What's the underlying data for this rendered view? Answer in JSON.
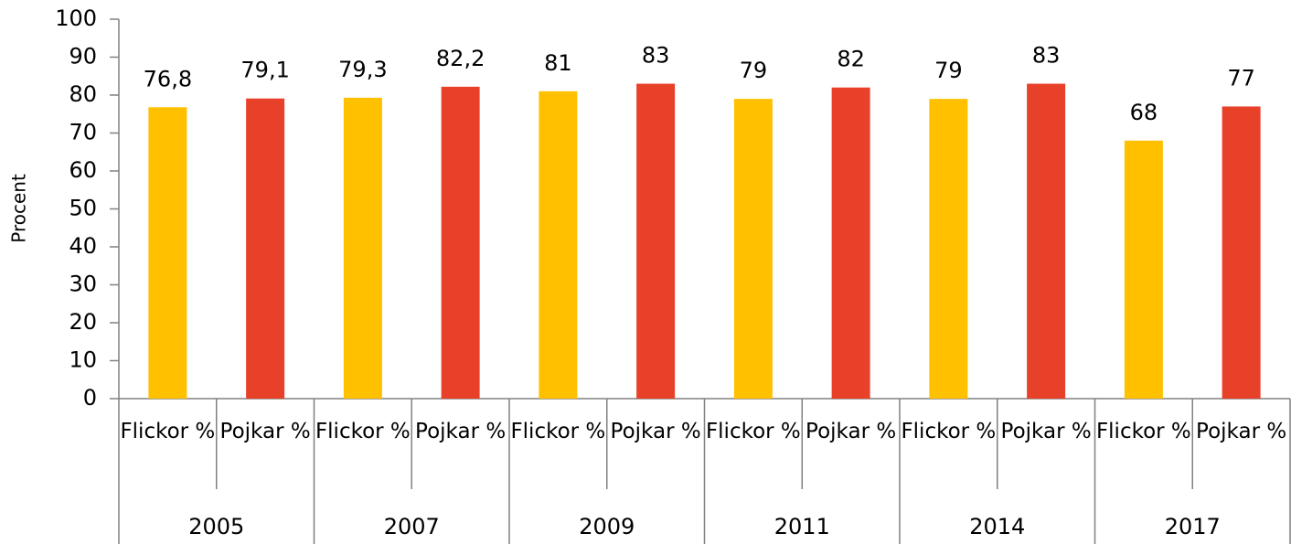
{
  "chart_data": {
    "type": "bar",
    "y_label": "Procent",
    "categories": [
      "Flickor %",
      "Pojkar %",
      "Flickor %",
      "Pojkar %",
      "Flickor %",
      "Pojkar %",
      "Flickor %",
      "Pojkar %",
      "Flickor %",
      "Pojkar %",
      "Flickor %",
      "Pojkar %"
    ],
    "groups": [
      "2005",
      "2007",
      "2009",
      "2011",
      "2014",
      "2017"
    ],
    "values": [
      76.8,
      79.1,
      79.3,
      82.2,
      81,
      83,
      79,
      82,
      79,
      83,
      68,
      77
    ],
    "value_labels": [
      "76,8",
      "79,1",
      "79,3",
      "82,2",
      "81",
      "83",
      "79",
      "82",
      "79",
      "83",
      "68",
      "77"
    ],
    "colors": [
      "#ffc000",
      "#e8412a",
      "#ffc000",
      "#e8412a",
      "#ffc000",
      "#e8412a",
      "#ffc000",
      "#e8412a",
      "#ffc000",
      "#e8412a",
      "#ffc000",
      "#e8412a"
    ],
    "ylim": [
      0,
      100
    ],
    "yticks": [
      0,
      10,
      20,
      30,
      40,
      50,
      60,
      70,
      80,
      90,
      100
    ],
    "grid": false
  }
}
